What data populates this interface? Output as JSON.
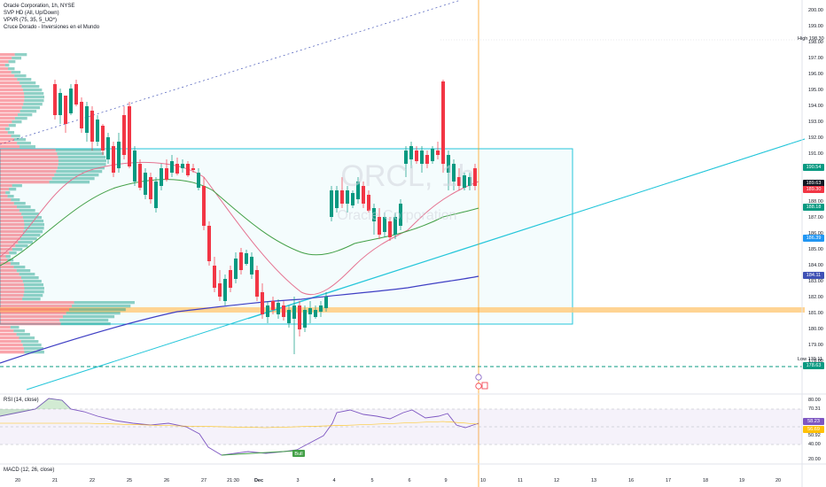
{
  "legend": {
    "title": "Oracle Corporation, 1h, NYSE",
    "svp": "SVP HD (All, Up/Down)",
    "vpvr": "VPVR (75, 35, 5_UO*)",
    "cruce": "Cruce Dorado - Inversiones en el Mundo"
  },
  "watermark": {
    "symbol": "ORCL, 1h",
    "name": "Oracle Corporation"
  },
  "price_axis": {
    "ticks": [
      "200.00",
      "199.00",
      "198.00",
      "197.00",
      "196.00",
      "195.00",
      "194.00",
      "193.00",
      "192.00",
      "191.00",
      "190.00",
      "189.00",
      "188.00",
      "187.00",
      "186.00",
      "185.00",
      "184.00",
      "183.00",
      "182.00",
      "181.00",
      "180.00",
      "179.00",
      "178.00"
    ],
    "high_text": "High",
    "high_value": "198.30",
    "low_text": "Low",
    "low_value": "179.11",
    "labels": [
      {
        "value": "190.54",
        "color": "#089981"
      },
      {
        "value": "189.63",
        "color": "#131722"
      },
      {
        "value": "189.30",
        "color": "#f23645"
      },
      {
        "value": "188.18",
        "color": "#089981"
      },
      {
        "value": "186.39",
        "color": "#2196f3"
      },
      {
        "value": "184.11",
        "color": "#3f51b5"
      },
      {
        "value": "178.63",
        "color": "#089981"
      }
    ]
  },
  "rsi": {
    "legend": "RSI (14, close)",
    "ticks": [
      "80.00",
      "70.31",
      "50.92",
      "40.00",
      "20.00"
    ],
    "labels": [
      {
        "value": "58.23",
        "color": "#7e57c2"
      },
      {
        "value": "56.69",
        "color": "#ffc107"
      }
    ],
    "bull_label": "Bull"
  },
  "macd": {
    "legend": "MACD (12, 26, close)"
  },
  "time_axis": [
    "20",
    "21",
    "22",
    "25",
    "26",
    "27",
    "21:30",
    "Dec",
    "3",
    "4",
    "5",
    "6",
    "9",
    "10",
    "11",
    "12",
    "13",
    "16",
    "17",
    "18",
    "19",
    "20"
  ],
  "colors": {
    "up": "#089981",
    "down": "#f23645",
    "ema_red": "#e57391",
    "ema_green": "#43a047",
    "ma_blue": "#3f3fc4",
    "trend": "#26c6da",
    "zone": "#ffcc80"
  }
}
